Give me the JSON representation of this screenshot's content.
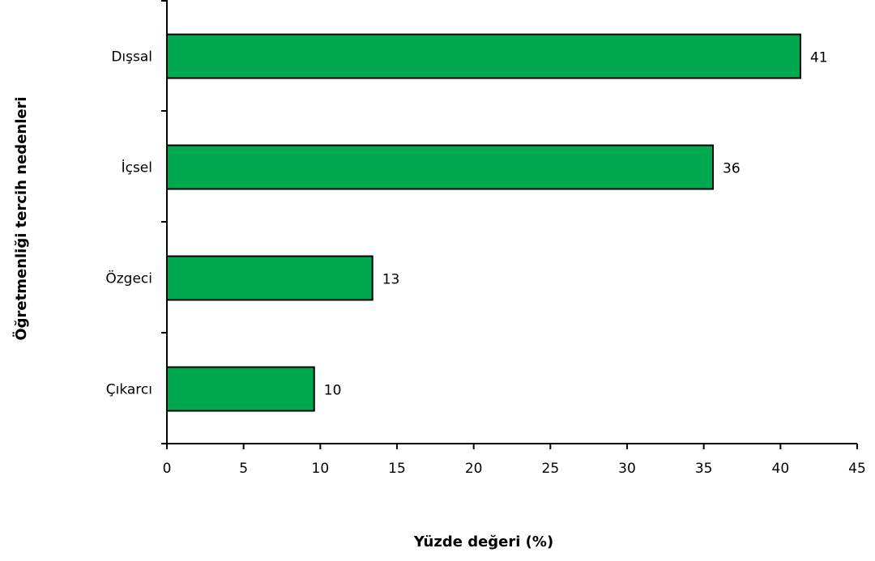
{
  "chart_data": {
    "type": "bar",
    "orientation": "horizontal",
    "categories": [
      "Dışsal",
      "İçsel",
      "Özgeci",
      "Çıkarcı"
    ],
    "values": [
      41.3,
      35.6,
      13.4,
      9.6
    ],
    "data_labels": [
      "41",
      "36",
      "13",
      "10"
    ],
    "xlabel": "Yüzde değeri (%)",
    "ylabel": "Öğretmenliği tercih nedenleri",
    "xlim": [
      0,
      45
    ],
    "xticks": [
      "0",
      "5",
      "10",
      "15",
      "20",
      "25",
      "30",
      "35",
      "40",
      "45"
    ],
    "bar_color": "#00a94f",
    "bar_edge_color": "#000000",
    "grid": false,
    "legend": "none"
  }
}
